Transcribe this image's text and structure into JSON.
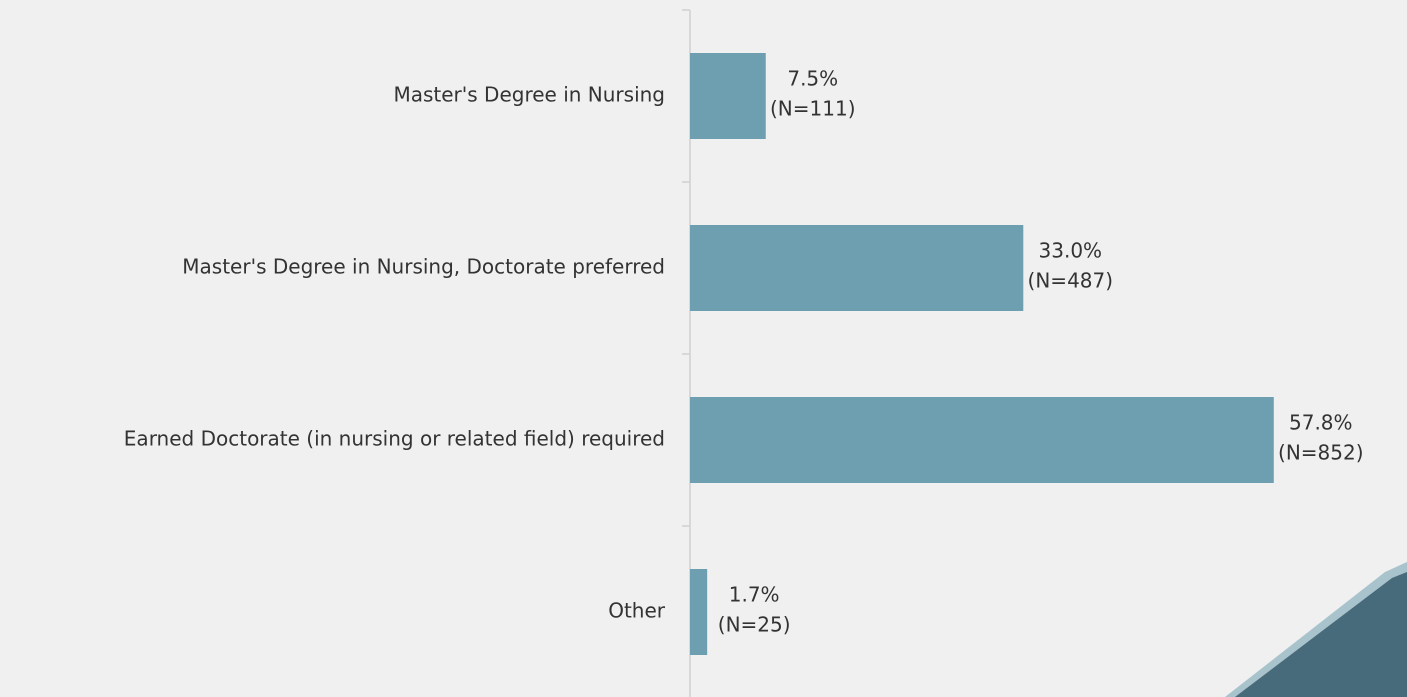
{
  "chart_data": {
    "type": "barh",
    "categories": [
      "Master's Degree in Nursing",
      "Master's Degree in Nursing, Doctorate preferred",
      "Earned Doctorate (in nursing or related field) required",
      "Other"
    ],
    "values": [
      7.5,
      33.0,
      57.8,
      1.7
    ],
    "value_labels": [
      "7.5%",
      "33.0%",
      "57.8%",
      "1.7%"
    ],
    "n_labels": [
      "(N=111)",
      "(N=487)",
      "(N=852)",
      "(N=25)"
    ],
    "color": "#6e9fb0",
    "xlim": [
      0,
      70
    ]
  }
}
